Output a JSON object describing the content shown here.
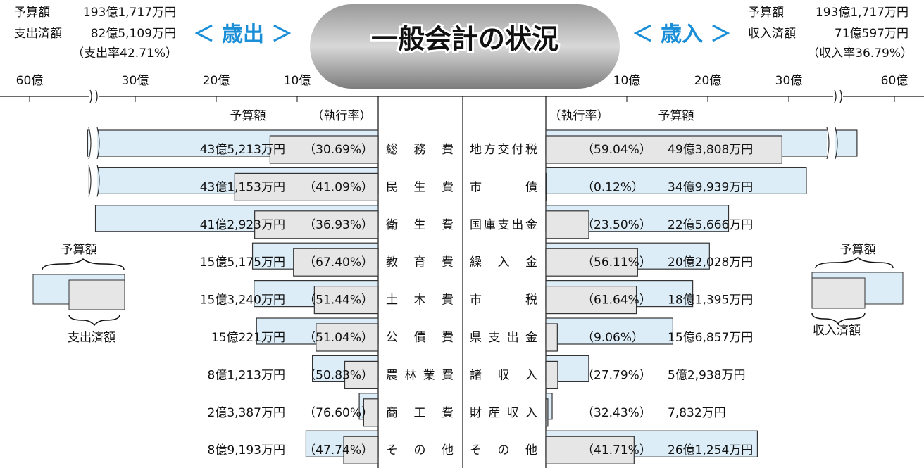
{
  "header": {
    "expenditure": {
      "budget_label": "予算額",
      "budget": "193億1,717万円",
      "spent_label": "支出済額",
      "spent": "82億5,109万円",
      "rate": "（支出率42.71%）",
      "heading": "＜ 歳出 ＞"
    },
    "revenue": {
      "budget_label": "予算額",
      "budget": "193億1,717万円",
      "spent_label": "収入済額",
      "spent": "71億597万円",
      "rate": "（収入率36.79%）",
      "heading": "＜ 歳入 ＞"
    }
  },
  "chart_data": {
    "type": "butterfly",
    "title": "一般会計の状況",
    "xticks": [
      {
        "value": 10,
        "label": "10億"
      },
      {
        "value": 20,
        "label": "20億"
      },
      {
        "value": 30,
        "label": "30億"
      },
      {
        "value": 60,
        "label": "60億"
      }
    ],
    "expenditure": {
      "categories": [
        "総務費",
        "民生費",
        "衛生費",
        "教育費",
        "土木費",
        "公債費",
        "農林業費",
        "商工費",
        "その他"
      ],
      "series": [
        {
          "name": "予算額",
          "color": "#dcedf8",
          "values": [
            43.5213,
            43.1153,
            41.2923,
            15.5175,
            15.324,
            15.0221,
            8.1213,
            2.3387,
            8.9193
          ],
          "value_labels": [
            "43億5,213万円",
            "43億1,153万円",
            "41億2,923万円",
            "15億5,175万円",
            "15億3,240万円",
            "15億221万円",
            "8億1,213万円",
            "2億3,387万円",
            "8億9,193万円"
          ]
        },
        {
          "name": "（執行率）",
          "color": "#e6e6e6",
          "values": [
            30.69,
            41.09,
            36.93,
            67.4,
            51.44,
            51.04,
            50.83,
            76.6,
            47.74
          ],
          "value_labels": [
            "（30.69%）",
            "（41.09%）",
            "（36.93%）",
            "（67.40%）",
            "（51.44%）",
            "（51.04%）",
            "（50.83%）",
            "（76.60%）",
            "（47.74%）"
          ]
        }
      ],
      "legend": [
        "予算額",
        "支出済額"
      ]
    },
    "revenue": {
      "categories": [
        "地方交付税",
        "市債",
        "国庫支出金",
        "繰入金",
        "市税",
        "県支出金",
        "諸収入",
        "財産収入",
        "その他"
      ],
      "series": [
        {
          "name": "予算額",
          "color": "#dcedf8",
          "values": [
            49.3808,
            34.9939,
            22.5666,
            20.2028,
            18.1395,
            15.6857,
            5.2938,
            0.7832,
            26.1254
          ],
          "value_labels": [
            "49億3,808万円",
            "34億9,939万円",
            "22億5,666万円",
            "20億2,028万円",
            "18億1,395万円",
            "15億6,857万円",
            "5億2,938万円",
            "7,832万円",
            "26億1,254万円"
          ]
        },
        {
          "name": "（執行率）",
          "color": "#e6e6e6",
          "values": [
            59.04,
            0.12,
            23.5,
            56.11,
            61.64,
            9.06,
            27.79,
            32.43,
            41.71
          ],
          "value_labels": [
            "（59.04%）",
            "（0.12%）",
            "（23.50%）",
            "（56.11%）",
            "（61.64%）",
            "（9.06%）",
            "（27.79%）",
            "（32.43%）",
            "（41.71%）"
          ]
        }
      ],
      "legend": [
        "予算額",
        "収入済額"
      ]
    }
  }
}
